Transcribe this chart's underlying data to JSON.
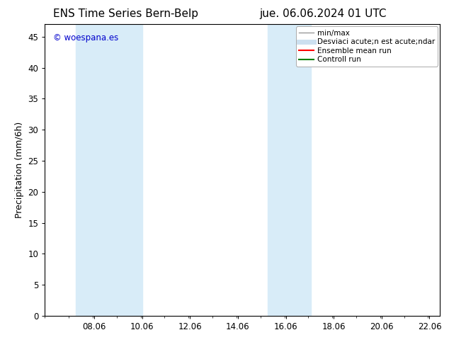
{
  "title_left": "ENS Time Series Bern-Belp",
  "title_right": "jue. 06.06.2024 01 UTC",
  "ylabel": "Precipitation (mm/6h)",
  "xlim": [
    6.0,
    22.5
  ],
  "ylim": [
    0,
    47
  ],
  "yticks": [
    0,
    5,
    10,
    15,
    20,
    25,
    30,
    35,
    40,
    45
  ],
  "xtick_labels": [
    "08.06",
    "10.06",
    "12.06",
    "14.06",
    "16.06",
    "18.06",
    "20.06",
    "22.06"
  ],
  "xtick_positions": [
    8.06,
    10.06,
    12.06,
    14.06,
    16.06,
    18.06,
    20.06,
    22.06
  ],
  "shaded_bands": [
    {
      "xmin": 7.3,
      "xmax": 10.06,
      "color": "#d8ecf8"
    },
    {
      "xmin": 15.3,
      "xmax": 17.1,
      "color": "#d8ecf8"
    }
  ],
  "watermark_text": "© woespana.es",
  "watermark_color": "#0000cc",
  "legend_entries": [
    {
      "label": "min/max",
      "color": "#999999",
      "lw": 1.0
    },
    {
      "label": "Desviaci acute;n est acute;ndar",
      "color": "#cce0f0",
      "lw": 5
    },
    {
      "label": "Ensemble mean run",
      "color": "#ff0000",
      "lw": 1.5
    },
    {
      "label": "Controll run",
      "color": "#008000",
      "lw": 1.5
    }
  ],
  "background_color": "#ffffff",
  "axes_bg_color": "#ffffff",
  "title_fontsize": 11,
  "tick_fontsize": 8.5,
  "ylabel_fontsize": 9,
  "legend_fontsize": 7.5
}
